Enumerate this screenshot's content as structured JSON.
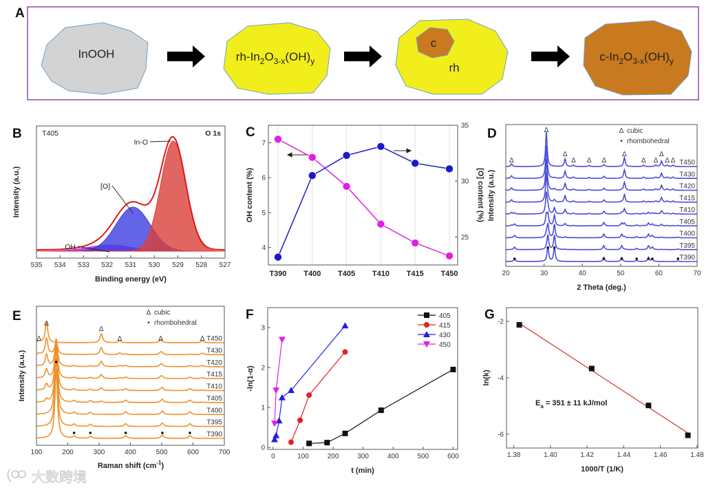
{
  "schematic": {
    "panel": "A",
    "stages": [
      {
        "name": "InOOH",
        "parts": [
          [
            "InOOH",
            ""
          ]
        ],
        "color": "#d3d3d3"
      },
      {
        "name": "rh",
        "parts": [
          [
            "rh-In",
            ""
          ],
          [
            "2",
            "sub"
          ],
          [
            "O",
            ""
          ],
          [
            "3-x",
            "sub"
          ],
          [
            "(OH)",
            ""
          ],
          [
            "y",
            "sub"
          ]
        ],
        "color": "#f2ee1c"
      },
      {
        "name": "mixed",
        "parts": [
          [
            "rh",
            ""
          ]
        ],
        "inner": "c",
        "color": "#f2ee1c",
        "inner_color": "#c9791e"
      },
      {
        "name": "cubic",
        "parts": [
          [
            "c-In",
            ""
          ],
          [
            "2",
            "sub"
          ],
          [
            "O",
            ""
          ],
          [
            "3-x",
            "sub"
          ],
          [
            "(OH)",
            ""
          ],
          [
            "y",
            "sub"
          ]
        ],
        "color": "#c9791e"
      }
    ],
    "border_color": "#8b4bb0"
  },
  "watermark": "大数跨境",
  "chart_data": [
    {
      "panel": "B",
      "type": "area",
      "title": "O 1s",
      "sample": "T405",
      "xlabel": "Binding energy (eV)",
      "ylabel": "Intensity (a.u.)",
      "xlim": [
        535,
        527
      ],
      "xticks": [
        "535",
        "534",
        "533",
        "532",
        "531",
        "530",
        "529",
        "528",
        "527"
      ],
      "components": [
        {
          "name": "In-O",
          "center_eV": 529.2,
          "rel_height": 1.0,
          "fwhm_eV": 1.25,
          "color": "#d9403a"
        },
        {
          "name": "[O]",
          "center_eV": 530.9,
          "rel_height": 0.4,
          "fwhm_eV": 1.7,
          "color": "#3d3de0"
        },
        {
          "name": "OH",
          "center_eV": 531.9,
          "rel_height": 0.055,
          "fwhm_eV": 2.2,
          "color": "#b020d8"
        }
      ]
    },
    {
      "panel": "C",
      "type": "line",
      "categories": [
        "T390",
        "T400",
        "T405",
        "T410",
        "T415",
        "T450"
      ],
      "ylabel": "OH content (%)",
      "y2label": "[O] content (%)",
      "ylim": [
        3.5,
        7.5
      ],
      "yticks": [
        "4",
        "5",
        "6",
        "7"
      ],
      "y2lim": [
        22.5,
        35
      ],
      "y2ticks": [
        "25",
        "30",
        "35"
      ],
      "series": [
        {
          "name": "OH content",
          "axis": "left",
          "values": [
            7.1,
            6.58,
            5.75,
            4.67,
            4.13,
            3.76
          ],
          "color": "#e020e0"
        },
        {
          "name": "[O] content",
          "axis": "right",
          "values": [
            23.2,
            30.5,
            32.3,
            33.1,
            31.6,
            31.1
          ],
          "color": "#1a1ac8"
        }
      ]
    },
    {
      "panel": "D",
      "type": "line",
      "xlabel": "2 Theta (deg.)",
      "ylabel": "Intensity (a.u.)",
      "xlim": [
        20,
        70
      ],
      "xticks": [
        "20",
        "30",
        "40",
        "50",
        "60",
        "70"
      ],
      "legend": [
        {
          "symbol": "Δ",
          "label": "cubic"
        },
        {
          "symbol": "•",
          "label": "rhombohedral"
        }
      ],
      "samples": [
        "T390",
        "T395",
        "T400",
        "T405",
        "T410",
        "T415",
        "T420",
        "T430",
        "T450"
      ],
      "cubic_fraction": [
        0,
        0.05,
        0.12,
        0.3,
        0.6,
        0.85,
        0.9,
        0.95,
        1
      ],
      "cubic_peaks": [
        21.5,
        30.6,
        35.5,
        37.7,
        41.8,
        45.7,
        51.0,
        56.0,
        59.2,
        60.7,
        62.2,
        63.7
      ],
      "rhombohedral_peaks": [
        22.3,
        31.0,
        32.7,
        45.6,
        50.3,
        54.2,
        57.3,
        58.3,
        65.0
      ],
      "color": "#4a4ae0"
    },
    {
      "panel": "E",
      "type": "line",
      "xlabel": "Raman shift (cm",
      "xlabel_sup": "-1",
      "xlabel_end": ")",
      "ylabel": "Intensity (a.u.)",
      "xlim": [
        100,
        700
      ],
      "xticks": [
        "100",
        "200",
        "300",
        "400",
        "500",
        "600",
        "700"
      ],
      "legend": [
        {
          "symbol": "Δ",
          "label": "cubic"
        },
        {
          "symbol": "•",
          "label": "rhombohedral"
        }
      ],
      "samples": [
        "T390",
        "T395",
        "T400",
        "T405",
        "T410",
        "T415",
        "T420",
        "T430",
        "T450"
      ],
      "cubic_fraction": [
        0,
        0,
        0,
        0.15,
        0.3,
        0.45,
        0.6,
        0.8,
        1
      ],
      "cubic_peaks": [
        108,
        132,
        307,
        366,
        497,
        630
      ],
      "rhombohedral_peaks": [
        163,
        220,
        272,
        385,
        502,
        590
      ],
      "color": "#f0902a"
    },
    {
      "panel": "F",
      "type": "line",
      "xlabel": "t (min)",
      "ylabel": "-ln(1-α)",
      "xlim": [
        -18,
        615
      ],
      "xticks": [
        "0",
        "100",
        "200",
        "300",
        "400",
        "500",
        "600"
      ],
      "ylim": [
        -0.05,
        3.5
      ],
      "yticks": [
        "0",
        "1",
        "2",
        "3"
      ],
      "legend_position": "top-right",
      "series": [
        {
          "name": "405",
          "marker": "square",
          "color": "#111111",
          "x": [
            120,
            180,
            240,
            360,
            600
          ],
          "y": [
            0.1,
            0.12,
            0.35,
            0.93,
            1.95
          ]
        },
        {
          "name": "415",
          "marker": "circle",
          "color": "#e52020",
          "x": [
            60,
            90,
            120,
            240
          ],
          "y": [
            0.13,
            0.68,
            1.31,
            2.39
          ]
        },
        {
          "name": "430",
          "marker": "triangle-up",
          "color": "#2020e0",
          "x": [
            5,
            10,
            20,
            30,
            60,
            240
          ],
          "y": [
            0.2,
            0.3,
            0.67,
            1.25,
            1.43,
            3.05
          ]
        },
        {
          "name": "450",
          "marker": "triangle-down",
          "color": "#e020e0",
          "x": [
            5,
            10,
            30
          ],
          "y": [
            0.6,
            1.43,
            2.7
          ]
        }
      ]
    },
    {
      "panel": "G",
      "type": "scatter",
      "xlabel": "1000/T (1/K)",
      "ylabel": "ln(k)",
      "xlim": [
        1.376,
        1.4804
      ],
      "xticks": [
        "1.38",
        "1.40",
        "1.42",
        "1.44",
        "1.46",
        "1.48"
      ],
      "ylim": [
        -6.49,
        -1.51
      ],
      "yticks": [
        "-2",
        "-4",
        "-6"
      ],
      "x": [
        1.383,
        1.4225,
        1.4535,
        1.475
      ],
      "y": [
        -2.12,
        -3.67,
        -4.98,
        -6.04
      ],
      "fit_color": "#d04040",
      "annotation": {
        "main": "E",
        "sub": "a",
        "rest": " = 351 ± 11 kJ/mol"
      }
    }
  ]
}
